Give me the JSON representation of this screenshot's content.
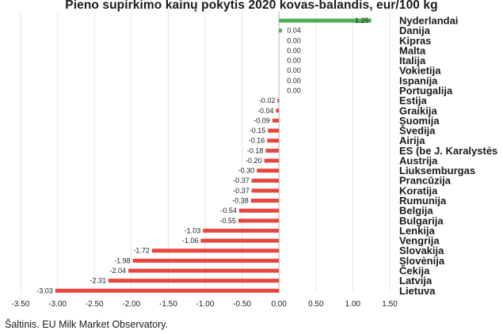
{
  "page": {
    "title": "Pieno supirkimo kainų pokytis 2020 kovas-balandis, eur/100 kg",
    "source": "Šaltinis. EU Milk Market Observatory."
  },
  "chart_data": {
    "type": "bar",
    "orientation": "horizontal",
    "title": "Pieno supirkimo kainų pokytis 2020 kovas-balandis, eur/100 kg",
    "xlabel": "",
    "ylabel": "",
    "xlim": [
      -3.5,
      1.5
    ],
    "x_ticks": [
      "-3.50",
      "-3.00",
      "-2.50",
      "-2.00",
      "-1.50",
      "-1.00",
      "-0.50",
      "0.00",
      "0.50",
      "1.00",
      "1.50"
    ],
    "grid": true,
    "legend": "none",
    "colors": {
      "positive": "#4caf50",
      "negative": "#e8473d"
    },
    "categories": [
      "Nyderlandai",
      "Danija",
      "Kipras",
      "Malta",
      "Italija",
      "Vokietija",
      "Ispanija",
      "Portugalija",
      "Estija",
      "Graikija",
      "Suomija",
      "Švedija",
      "Airija",
      "ES (be J. Karalystės",
      "Austrija",
      "Liuksemburgas",
      "Prancūzija",
      "Koratija",
      "Rumunija",
      "Belgija",
      "Bulgarija",
      "Lenkija",
      "Vengrija",
      "Slovakija",
      "Slovėnija",
      "Čekija",
      "Latvija",
      "Lietuva"
    ],
    "values": [
      1.25,
      0.04,
      0.0,
      0.0,
      0.0,
      0.0,
      0.0,
      0.0,
      -0.02,
      -0.04,
      -0.09,
      -0.15,
      -0.16,
      -0.18,
      -0.2,
      -0.3,
      -0.37,
      -0.37,
      -0.38,
      -0.54,
      -0.55,
      -1.03,
      -1.06,
      -1.72,
      -1.98,
      -2.04,
      -2.31,
      -3.03
    ],
    "value_labels": [
      "1.25",
      "0.04",
      "0.00",
      "0.00",
      "0.00",
      "0.00",
      "0.00",
      "0.00",
      "-0.02",
      "-0.04",
      "-0.09",
      "-0.15",
      "-0.16",
      "-0.18",
      "-0.20",
      "-0.30",
      "-0.37",
      "-0.37",
      "-0.38",
      "-0.54",
      "-0.55",
      "-1.03",
      "-1.06",
      "-1.72",
      "-1.98",
      "-2.04",
      "-2.31",
      "-3.03"
    ]
  }
}
